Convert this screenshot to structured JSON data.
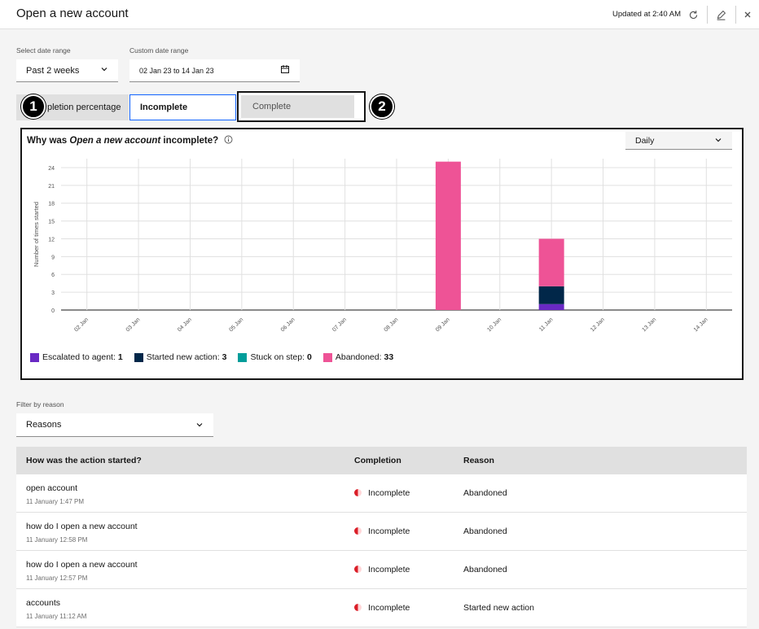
{
  "header": {
    "title": "Open a new account",
    "updated": "Updated at 2:40 AM"
  },
  "filters": {
    "date_range_label": "Select date range",
    "date_range_value": "Past 2 weeks",
    "custom_range_label": "Custom date range",
    "custom_range_value": "02 Jan 23 to 14 Jan 23"
  },
  "tabs": [
    {
      "label": "Completion percentage",
      "visible": "pletion percentage"
    },
    {
      "label": "Incomplete"
    },
    {
      "label": "Complete"
    }
  ],
  "badges": [
    "1",
    "2"
  ],
  "chart_panel": {
    "title_prefix": "Why was ",
    "title_italic": "Open a new account",
    "title_suffix": " incomplete?",
    "granularity": "Daily"
  },
  "chart_data": {
    "type": "bar",
    "stacked": true,
    "ylabel": "Number of times started",
    "ylim": [
      0,
      25.5
    ],
    "yticks": [
      0,
      3,
      6,
      9,
      12,
      15,
      18,
      21,
      24
    ],
    "categories": [
      "02 Jan",
      "03 Jan",
      "04 Jan",
      "05 Jan",
      "06 Jan",
      "07 Jan",
      "08 Jan",
      "09 Jan",
      "10 Jan",
      "11 Jan",
      "12 Jan",
      "13 Jan",
      "14 Jan"
    ],
    "series": [
      {
        "name": "Escalated to agent",
        "color": "#6929c4",
        "values": [
          0,
          0,
          0,
          0,
          0,
          0,
          0,
          0,
          0,
          1,
          0,
          0,
          0
        ]
      },
      {
        "name": "Started new action",
        "color": "#012749",
        "values": [
          0,
          0,
          0,
          0,
          0,
          0,
          0,
          0,
          0,
          3,
          0,
          0,
          0
        ]
      },
      {
        "name": "Stuck on step",
        "color": "#009d9a",
        "values": [
          0,
          0,
          0,
          0,
          0,
          0,
          0,
          0,
          0,
          0,
          0,
          0,
          0
        ]
      },
      {
        "name": "Abandoned",
        "color": "#ee5396",
        "values": [
          0,
          0,
          0,
          0,
          0,
          0,
          0,
          25,
          0,
          8,
          0,
          0,
          0
        ]
      }
    ],
    "legend_totals": [
      "1",
      "3",
      "0",
      "33"
    ],
    "grid": true,
    "legend_position": "bottom-left"
  },
  "reason_filter": {
    "label": "Filter by reason",
    "value": "Reasons"
  },
  "table": {
    "headers": [
      "How was the action started?",
      "Completion",
      "Reason"
    ],
    "rows": [
      {
        "utterance": "open account",
        "time": "11 January 1:47 PM",
        "completion": "Incomplete",
        "reason": "Abandoned"
      },
      {
        "utterance": "how do I open a new account",
        "time": "11 January 12:58 PM",
        "completion": "Incomplete",
        "reason": "Abandoned"
      },
      {
        "utterance": "how do I open a new account",
        "time": "11 January 12:57 PM",
        "completion": "Incomplete",
        "reason": "Abandoned"
      },
      {
        "utterance": "accounts",
        "time": "11 January 11:12 AM",
        "completion": "Incomplete",
        "reason": "Started new action"
      }
    ]
  }
}
